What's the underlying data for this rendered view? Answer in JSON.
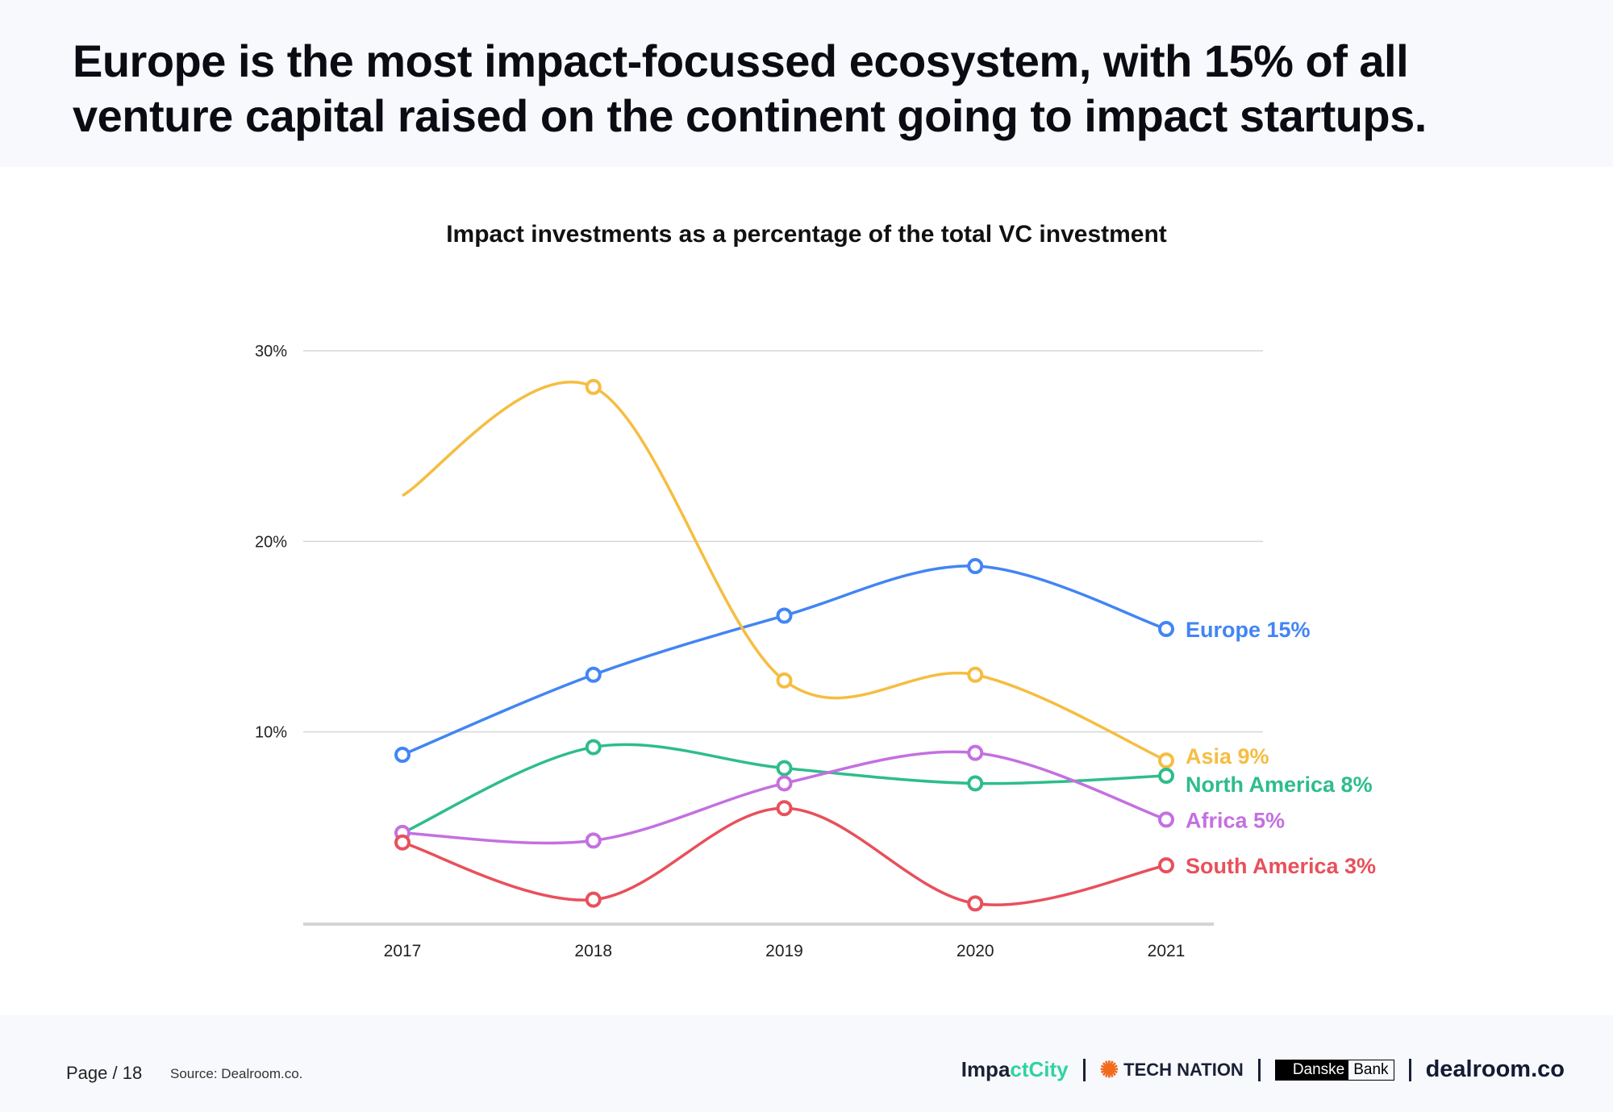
{
  "header": {
    "headline": "Europe is the most impact-focussed ecosystem, with 15% of all venture capital raised on the continent going to impact startups."
  },
  "chart_data": {
    "type": "line",
    "title": "Impact investments as a percentage of the total VC investment",
    "xlabel": "",
    "ylabel": "",
    "categories": [
      "2017",
      "2018",
      "2019",
      "2020",
      "2021"
    ],
    "ylim": [
      0,
      30
    ],
    "yticks": [
      {
        "v": 10,
        "label": "10%"
      },
      {
        "v": 20,
        "label": "20%"
      },
      {
        "v": 30,
        "label": "30%"
      }
    ],
    "grid": true,
    "legend": "inline-right",
    "series": [
      {
        "name": "Europe",
        "end_label": "Europe 15%",
        "color": "#4285f4",
        "values": [
          8.8,
          13.0,
          16.1,
          18.7,
          15.4
        ],
        "markers": [
          true,
          true,
          true,
          true,
          true
        ]
      },
      {
        "name": "Asia",
        "end_label": "Asia 9%",
        "color": "#f6bd41",
        "values": [
          22.4,
          28.1,
          12.7,
          13.0,
          8.5
        ],
        "markers": [
          false,
          true,
          true,
          true,
          true
        ]
      },
      {
        "name": "North America",
        "end_label": "North America 8%",
        "color": "#2ebd8a",
        "values": [
          4.7,
          9.2,
          8.1,
          7.3,
          7.7
        ],
        "markers": [
          false,
          true,
          true,
          true,
          true
        ]
      },
      {
        "name": "Africa",
        "end_label": "Africa 5%",
        "color": "#c470e0",
        "values": [
          4.7,
          4.3,
          7.3,
          8.9,
          5.4
        ],
        "markers": [
          true,
          true,
          true,
          true,
          true
        ]
      },
      {
        "name": "South America",
        "end_label": "South America 3%",
        "color": "#e8505b",
        "values": [
          4.2,
          1.2,
          6.0,
          1.0,
          3.0
        ],
        "markers": [
          true,
          true,
          true,
          true,
          true
        ]
      }
    ]
  },
  "footer": {
    "page": "Page / 18",
    "source": "Source: Dealroom.co.",
    "logos": {
      "impactcity_a": "Impa",
      "impactcity_b": "ctCity",
      "technation": "TECH NATION",
      "danske": "Danske",
      "bank": "Bank",
      "dealroom": "dealroom.co"
    }
  }
}
